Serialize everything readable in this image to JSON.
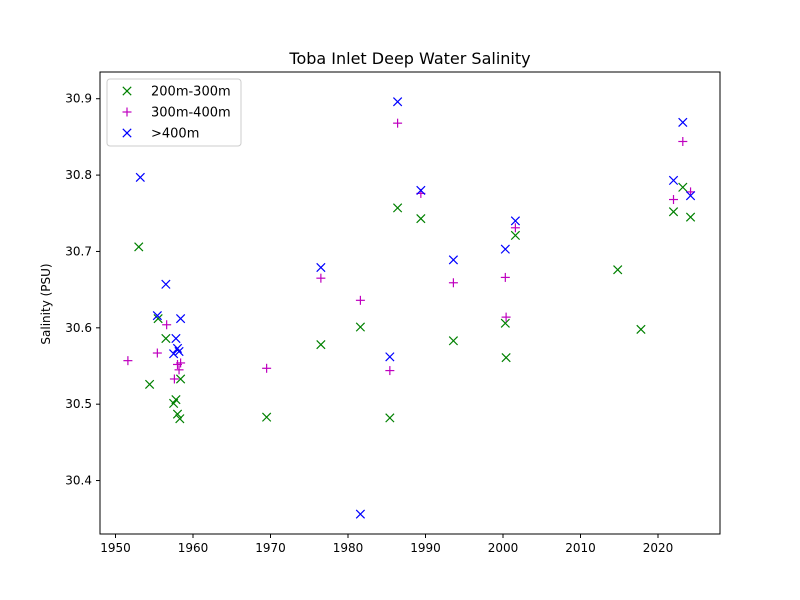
{
  "chart_data": {
    "type": "scatter",
    "title": "Toba Inlet Deep Water Salinity",
    "xlabel": "",
    "ylabel": "Salinity (PSU)",
    "xlim": [
      1948,
      2028
    ],
    "ylim": [
      30.33,
      30.935
    ],
    "x_ticks": [
      1950,
      1960,
      1970,
      1980,
      1990,
      2000,
      2010,
      2020
    ],
    "y_ticks": [
      30.4,
      30.5,
      30.6,
      30.7,
      30.8,
      30.9
    ],
    "x_tick_labels": [
      "1950",
      "1960",
      "1970",
      "1980",
      "1990",
      "2000",
      "2010",
      "2020"
    ],
    "y_tick_labels": [
      "30.4",
      "30.5",
      "30.6",
      "30.7",
      "30.8",
      "30.9"
    ],
    "grid": false,
    "legend_position": "top-left",
    "series": [
      {
        "name": "200m-300m",
        "marker": "x",
        "color": "#008000",
        "points": [
          [
            1953.0,
            30.706
          ],
          [
            1954.4,
            30.526
          ],
          [
            1955.5,
            30.612
          ],
          [
            1956.5,
            30.586
          ],
          [
            1957.5,
            30.501
          ],
          [
            1957.8,
            30.506
          ],
          [
            1958.0,
            30.487
          ],
          [
            1958.3,
            30.481
          ],
          [
            1958.4,
            30.533
          ],
          [
            1969.5,
            30.483
          ],
          [
            1976.5,
            30.578
          ],
          [
            1981.6,
            30.601
          ],
          [
            1985.4,
            30.482
          ],
          [
            1986.4,
            30.757
          ],
          [
            1989.4,
            30.743
          ],
          [
            1993.6,
            30.583
          ],
          [
            2000.3,
            30.606
          ],
          [
            2000.4,
            30.561
          ],
          [
            2001.6,
            30.721
          ],
          [
            2014.8,
            30.676
          ],
          [
            2017.8,
            30.598
          ],
          [
            2022.0,
            30.752
          ],
          [
            2023.2,
            30.784
          ],
          [
            2024.2,
            30.745
          ]
        ]
      },
      {
        "name": "300m-400m",
        "marker": "+",
        "color": "#bf00bf",
        "points": [
          [
            1951.6,
            30.557
          ],
          [
            1955.4,
            30.567
          ],
          [
            1956.6,
            30.604
          ],
          [
            1957.6,
            30.533
          ],
          [
            1958.0,
            30.552
          ],
          [
            1958.2,
            30.545
          ],
          [
            1958.4,
            30.554
          ],
          [
            1969.5,
            30.547
          ],
          [
            1976.5,
            30.665
          ],
          [
            1981.6,
            30.636
          ],
          [
            1985.4,
            30.544
          ],
          [
            1986.4,
            30.868
          ],
          [
            1989.4,
            30.776
          ],
          [
            1993.6,
            30.659
          ],
          [
            2000.3,
            30.666
          ],
          [
            2000.4,
            30.614
          ],
          [
            2001.6,
            30.731
          ],
          [
            2022.0,
            30.768
          ],
          [
            2023.2,
            30.844
          ],
          [
            2024.2,
            30.778
          ]
        ]
      },
      {
        "name": ">400m",
        "marker": "x",
        "color": "#0000ff",
        "points": [
          [
            1953.2,
            30.797
          ],
          [
            1955.4,
            30.616
          ],
          [
            1956.5,
            30.657
          ],
          [
            1957.5,
            30.566
          ],
          [
            1957.8,
            30.586
          ],
          [
            1958.0,
            30.573
          ],
          [
            1958.2,
            30.569
          ],
          [
            1958.4,
            30.612
          ],
          [
            1976.5,
            30.679
          ],
          [
            1981.6,
            30.356
          ],
          [
            1985.4,
            30.562
          ],
          [
            1986.4,
            30.896
          ],
          [
            1989.4,
            30.78
          ],
          [
            1993.6,
            30.689
          ],
          [
            2000.3,
            30.703
          ],
          [
            2001.6,
            30.74
          ],
          [
            2022.0,
            30.793
          ],
          [
            2023.2,
            30.869
          ],
          [
            2024.2,
            30.773
          ]
        ]
      }
    ]
  }
}
